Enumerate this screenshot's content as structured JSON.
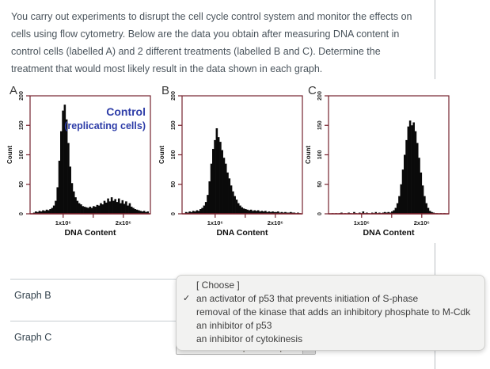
{
  "question": {
    "text": "You carry out experiments to disrupt the cell cycle control system and monitor the effects on\ncells using flow cytometry. Below are the data you obtain after measuring DNA content in\ncontrol cells (labelled A) and 2 different treatments (labelled B and C). Determine the\ntreatment that would most likely result in the data shown in each graph."
  },
  "colors": {
    "plot_frame_maroon": "#76232e",
    "plot_baseline_red": "#9b2531",
    "histogram_black": "#0a0a0a",
    "annotation_blue": "#2e3da8",
    "divider_gray": "#c7cdd1",
    "text_gray": "#4a545c"
  },
  "rows": [
    {
      "label": "Graph B"
    },
    {
      "label": "Graph C"
    }
  ],
  "select": {
    "value": "an activator of p53 that prevents initiation of S-phase"
  },
  "dropdown_menu": {
    "checkmark": "✓",
    "options": [
      {
        "label": "[ Choose ]",
        "selected": false
      },
      {
        "label": "an activator of p53 that prevents initiation of S-phase",
        "selected": true
      },
      {
        "label": "removal of the kinase that adds an inhibitory phosphate to M-Cdk",
        "selected": false
      },
      {
        "label": "an inhibitor of p53",
        "selected": false
      },
      {
        "label": "an inhibitor of cytokinesis",
        "selected": false
      }
    ]
  },
  "chart_data": [
    {
      "type": "bar",
      "panel": "A",
      "annotation_lines": [
        "Control",
        "(replicating cells)"
      ],
      "xlabel": "DNA Content",
      "ylabel": "Count",
      "xlim": [
        0.45,
        2.45
      ],
      "ylim": [
        0,
        200
      ],
      "x_ticks": [
        {
          "x": 1.0,
          "label": "1x10⁶"
        },
        {
          "x": 1.5,
          "label": ""
        },
        {
          "x": 2.0,
          "label": "2x10⁶"
        }
      ],
      "y_ticks": [
        0,
        50,
        100,
        150,
        200
      ],
      "bins_start": 0.5,
      "bin_width": 0.03,
      "counts": [
        2,
        4,
        3,
        5,
        4,
        6,
        5,
        7,
        6,
        8,
        10,
        14,
        22,
        45,
        90,
        140,
        175,
        185,
        160,
        120,
        80,
        52,
        38,
        28,
        22,
        18,
        16,
        13,
        12,
        11,
        10,
        12,
        10,
        13,
        12,
        15,
        14,
        18,
        16,
        22,
        19,
        26,
        21,
        28,
        22,
        25,
        20,
        26,
        18,
        23,
        17,
        21,
        14,
        18,
        12,
        10,
        8,
        7,
        6,
        5,
        4,
        5,
        3,
        4
      ]
    },
    {
      "type": "bar",
      "panel": "B",
      "annotation_lines": [],
      "xlabel": "DNA Content",
      "ylabel": "Count",
      "xlim": [
        0.45,
        2.45
      ],
      "ylim": [
        0,
        200
      ],
      "x_ticks": [
        {
          "x": 1.0,
          "label": "1x10⁶"
        },
        {
          "x": 1.5,
          "label": ""
        },
        {
          "x": 2.0,
          "label": "2x10⁶"
        }
      ],
      "y_ticks": [
        0,
        50,
        100,
        150,
        200
      ],
      "bins_start": 0.5,
      "bin_width": 0.03,
      "counts": [
        3,
        2,
        4,
        3,
        5,
        4,
        6,
        5,
        8,
        10,
        14,
        20,
        32,
        55,
        85,
        110,
        125,
        145,
        130,
        122,
        108,
        95,
        85,
        70,
        60,
        48,
        38,
        30,
        24,
        18,
        14,
        11,
        9,
        8,
        7,
        6,
        7,
        5,
        6,
        5,
        6,
        4,
        5,
        4,
        5,
        3,
        4,
        3,
        4,
        3,
        3,
        4,
        2,
        3,
        2,
        3,
        2,
        2,
        3,
        2,
        2,
        1,
        2,
        1
      ]
    },
    {
      "type": "bar",
      "panel": "C",
      "annotation_lines": [],
      "xlabel": "DNA Content",
      "ylabel": "Count",
      "xlim": [
        0.45,
        2.45
      ],
      "ylim": [
        0,
        200
      ],
      "x_ticks": [
        {
          "x": 1.0,
          "label": "1x10⁶"
        },
        {
          "x": 1.5,
          "label": ""
        },
        {
          "x": 2.0,
          "label": "2x10⁶"
        }
      ],
      "y_ticks": [
        0,
        50,
        100,
        150,
        200
      ],
      "bins_start": 0.5,
      "bin_width": 0.03,
      "counts": [
        1,
        0,
        1,
        0,
        1,
        2,
        0,
        1,
        0,
        2,
        1,
        0,
        3,
        1,
        0,
        2,
        1,
        4,
        1,
        2,
        1,
        0,
        2,
        1,
        3,
        1,
        2,
        1,
        2,
        3,
        2,
        3,
        2,
        4,
        6,
        10,
        18,
        30,
        50,
        75,
        100,
        125,
        148,
        158,
        150,
        155,
        140,
        120,
        95,
        70,
        48,
        30,
        18,
        10,
        5,
        3,
        2,
        1,
        1,
        0,
        1,
        0,
        1,
        0
      ]
    }
  ]
}
